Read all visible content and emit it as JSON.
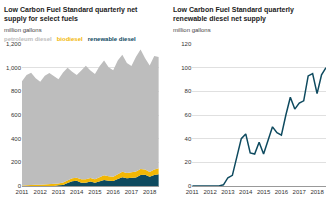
{
  "chart_data": [
    {
      "type": "area",
      "title": "Low Carbon Fuel Standard quarterly net supply for select fuels",
      "subtitle": "million gallons",
      "categories": [
        "2011",
        null,
        null,
        null,
        "2012",
        null,
        null,
        null,
        "2013",
        null,
        null,
        null,
        "2014",
        null,
        null,
        null,
        "2015",
        null,
        null,
        null,
        "2016",
        null,
        null,
        null,
        "2017",
        null,
        null,
        null,
        "2018",
        null,
        null
      ],
      "series": [
        {
          "name": "petroleum diesel",
          "color": "#bdbdbd",
          "values": [
            880,
            930,
            950,
            900,
            870,
            920,
            940,
            910,
            880,
            930,
            950,
            900,
            870,
            920,
            960,
            910,
            890,
            940,
            970,
            920,
            900,
            960,
            990,
            930,
            900,
            970,
            1010,
            940,
            900,
            960,
            940
          ]
        },
        {
          "name": "biodiesel",
          "color": "#f2b705",
          "values": [
            5,
            8,
            8,
            10,
            10,
            12,
            15,
            15,
            15,
            20,
            25,
            25,
            25,
            28,
            30,
            30,
            30,
            35,
            40,
            38,
            35,
            40,
            45,
            45,
            45,
            50,
            50,
            45,
            40,
            45,
            50
          ]
        },
        {
          "name": "renewable diesel",
          "color": "#0e4a5f",
          "values": [
            0,
            0,
            0,
            0,
            0,
            0,
            0,
            1,
            7,
            9,
            25,
            40,
            44,
            28,
            27,
            37,
            27,
            38,
            50,
            45,
            43,
            60,
            75,
            65,
            70,
            72,
            93,
            95,
            78,
            94,
            100
          ]
        }
      ],
      "stacked": true,
      "ylim": [
        0,
        1200
      ],
      "yticks": [
        0,
        200,
        400,
        600,
        800,
        {
          "value": 1000,
          "label": "1,000"
        },
        {
          "value": 1200,
          "label": "1,200"
        }
      ],
      "grid": true
    },
    {
      "type": "line",
      "title": "Low Carbon Fuel Standard quarterly renewable diesel net supply",
      "subtitle": "million gallons",
      "categories": [
        "2011",
        null,
        null,
        null,
        "2012",
        null,
        null,
        null,
        "2013",
        null,
        null,
        null,
        "2014",
        null,
        null,
        null,
        "2015",
        null,
        null,
        null,
        "2016",
        null,
        null,
        null,
        "2017",
        null,
        null,
        null,
        "2018",
        null,
        null
      ],
      "values": [
        0,
        0,
        0,
        0,
        0,
        0,
        0,
        1,
        7,
        9,
        25,
        40,
        44,
        28,
        27,
        37,
        27,
        38,
        50,
        45,
        43,
        60,
        75,
        65,
        70,
        72,
        93,
        95,
        78,
        94,
        100
      ],
      "color": "#0e4a5f",
      "ylim": [
        0,
        120
      ],
      "yticks": [
        0,
        20,
        40,
        60,
        80,
        100,
        120
      ],
      "grid": true
    }
  ]
}
